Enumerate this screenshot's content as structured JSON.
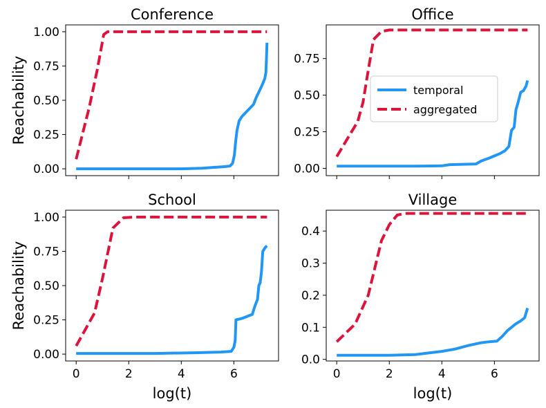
{
  "chart_data": [
    {
      "type": "line",
      "title": "Conference",
      "xlabel": "",
      "ylabel": "Reachability",
      "xlim": [
        -0.4,
        7.7
      ],
      "ylim": [
        -0.05,
        1.05
      ],
      "xticks": [
        0,
        2,
        4,
        6
      ],
      "xtick_labels": [
        "",
        "",
        "",
        ""
      ],
      "yticks": [
        0.0,
        0.25,
        0.5,
        0.75,
        1.0
      ],
      "ytick_labels": [
        "0.00",
        "0.25",
        "0.50",
        "0.75",
        "1.00"
      ],
      "legend": false,
      "series": [
        {
          "name": "temporal",
          "color": "#2196f3",
          "dash": "solid",
          "points": [
            [
              0,
              0.0
            ],
            [
              2,
              0.0
            ],
            [
              4,
              0.0
            ],
            [
              4.8,
              0.004
            ],
            [
              5.2,
              0.01
            ],
            [
              5.6,
              0.015
            ],
            [
              5.85,
              0.02
            ],
            [
              5.95,
              0.04
            ],
            [
              6.02,
              0.1
            ],
            [
              6.07,
              0.2
            ],
            [
              6.12,
              0.28
            ],
            [
              6.2,
              0.35
            ],
            [
              6.3,
              0.38
            ],
            [
              6.45,
              0.41
            ],
            [
              6.6,
              0.44
            ],
            [
              6.75,
              0.47
            ],
            [
              6.85,
              0.52
            ],
            [
              6.95,
              0.56
            ],
            [
              7.05,
              0.6
            ],
            [
              7.12,
              0.63
            ],
            [
              7.18,
              0.66
            ],
            [
              7.22,
              0.7
            ],
            [
              7.24,
              0.8
            ],
            [
              7.26,
              0.92
            ]
          ]
        },
        {
          "name": "aggregated",
          "color": "#dc143c",
          "dash": "dashed",
          "points": [
            [
              0,
              0.07
            ],
            [
              0.5,
              0.45
            ],
            [
              0.8,
              0.72
            ],
            [
              1.05,
              0.98
            ],
            [
              1.2,
              1.0
            ],
            [
              7.26,
              1.0
            ]
          ]
        }
      ]
    },
    {
      "type": "line",
      "title": "Office",
      "xlabel": "",
      "ylabel": "",
      "xlim": [
        -0.4,
        7.7
      ],
      "ylim": [
        -0.05,
        0.98
      ],
      "xticks": [
        0,
        2,
        4,
        6
      ],
      "xtick_labels": [
        "",
        "",
        "",
        ""
      ],
      "yticks": [
        0.0,
        0.25,
        0.5,
        0.75
      ],
      "ytick_labels": [
        "0.00",
        "0.25",
        "0.50",
        "0.75"
      ],
      "legend": true,
      "legend_position": "center-right",
      "legend_entries": [
        "temporal",
        "aggregated"
      ],
      "series": [
        {
          "name": "temporal",
          "color": "#2196f3",
          "dash": "solid",
          "points": [
            [
              0,
              0.015
            ],
            [
              3,
              0.015
            ],
            [
              4,
              0.017
            ],
            [
              4.3,
              0.025
            ],
            [
              5.3,
              0.03
            ],
            [
              5.5,
              0.05
            ],
            [
              5.8,
              0.07
            ],
            [
              6.0,
              0.085
            ],
            [
              6.2,
              0.1
            ],
            [
              6.4,
              0.12
            ],
            [
              6.55,
              0.15
            ],
            [
              6.65,
              0.26
            ],
            [
              6.75,
              0.28
            ],
            [
              6.82,
              0.4
            ],
            [
              6.9,
              0.45
            ],
            [
              7.0,
              0.52
            ],
            [
              7.1,
              0.53
            ],
            [
              7.2,
              0.56
            ],
            [
              7.26,
              0.6
            ]
          ]
        },
        {
          "name": "aggregated",
          "color": "#dc143c",
          "dash": "dashed",
          "points": [
            [
              0,
              0.08
            ],
            [
              0.8,
              0.32
            ],
            [
              1.0,
              0.45
            ],
            [
              1.2,
              0.67
            ],
            [
              1.4,
              0.88
            ],
            [
              1.7,
              0.935
            ],
            [
              2.0,
              0.945
            ],
            [
              7.26,
              0.945
            ]
          ]
        }
      ]
    },
    {
      "type": "line",
      "title": "School",
      "xlabel": "log(t)",
      "ylabel": "Reachability",
      "xlim": [
        -0.4,
        7.7
      ],
      "ylim": [
        -0.05,
        1.05
      ],
      "xticks": [
        0,
        2,
        4,
        6
      ],
      "xtick_labels": [
        "0",
        "2",
        "4",
        "6"
      ],
      "yticks": [
        0.0,
        0.25,
        0.5,
        0.75,
        1.0
      ],
      "ytick_labels": [
        "0.00",
        "0.25",
        "0.50",
        "0.75",
        "1.00"
      ],
      "legend": false,
      "series": [
        {
          "name": "temporal",
          "color": "#2196f3",
          "dash": "solid",
          "points": [
            [
              0,
              0.005
            ],
            [
              3,
              0.005
            ],
            [
              4.5,
              0.01
            ],
            [
              5.5,
              0.015
            ],
            [
              5.9,
              0.02
            ],
            [
              6.0,
              0.05
            ],
            [
              6.05,
              0.1
            ],
            [
              6.08,
              0.25
            ],
            [
              6.3,
              0.26
            ],
            [
              6.7,
              0.29
            ],
            [
              6.8,
              0.35
            ],
            [
              6.9,
              0.4
            ],
            [
              6.95,
              0.5
            ],
            [
              7.0,
              0.52
            ],
            [
              7.05,
              0.6
            ],
            [
              7.1,
              0.75
            ],
            [
              7.2,
              0.78
            ],
            [
              7.26,
              0.79
            ]
          ]
        },
        {
          "name": "aggregated",
          "color": "#dc143c",
          "dash": "dashed",
          "points": [
            [
              0,
              0.06
            ],
            [
              0.7,
              0.3
            ],
            [
              1.0,
              0.55
            ],
            [
              1.4,
              0.92
            ],
            [
              1.8,
              0.995
            ],
            [
              2.2,
              1.0
            ],
            [
              7.26,
              1.0
            ]
          ]
        }
      ]
    },
    {
      "type": "line",
      "title": "Village",
      "xlabel": "log(t)",
      "ylabel": "",
      "xlim": [
        -0.4,
        7.7
      ],
      "ylim": [
        -0.005,
        0.465
      ],
      "xticks": [
        0,
        2,
        4,
        6
      ],
      "xtick_labels": [
        "0",
        "2",
        "4",
        "6"
      ],
      "yticks": [
        0.0,
        0.1,
        0.2,
        0.3,
        0.4
      ],
      "ytick_labels": [
        "0.0",
        "0.1",
        "0.2",
        "0.3",
        "0.4"
      ],
      "legend": false,
      "series": [
        {
          "name": "temporal",
          "color": "#2196f3",
          "dash": "solid",
          "points": [
            [
              0,
              0.013
            ],
            [
              2,
              0.013
            ],
            [
              3,
              0.015
            ],
            [
              3.5,
              0.02
            ],
            [
              4,
              0.025
            ],
            [
              4.5,
              0.032
            ],
            [
              5,
              0.043
            ],
            [
              5.5,
              0.052
            ],
            [
              5.8,
              0.055
            ],
            [
              6.1,
              0.057
            ],
            [
              6.3,
              0.072
            ],
            [
              6.5,
              0.09
            ],
            [
              6.8,
              0.11
            ],
            [
              7.0,
              0.12
            ],
            [
              7.15,
              0.13
            ],
            [
              7.26,
              0.16
            ]
          ]
        },
        {
          "name": "aggregated",
          "color": "#dc143c",
          "dash": "dashed",
          "points": [
            [
              0,
              0.055
            ],
            [
              0.7,
              0.11
            ],
            [
              1.2,
              0.2
            ],
            [
              1.7,
              0.37
            ],
            [
              2.0,
              0.42
            ],
            [
              2.3,
              0.45
            ],
            [
              2.6,
              0.455
            ],
            [
              7.26,
              0.455
            ]
          ]
        }
      ]
    }
  ]
}
